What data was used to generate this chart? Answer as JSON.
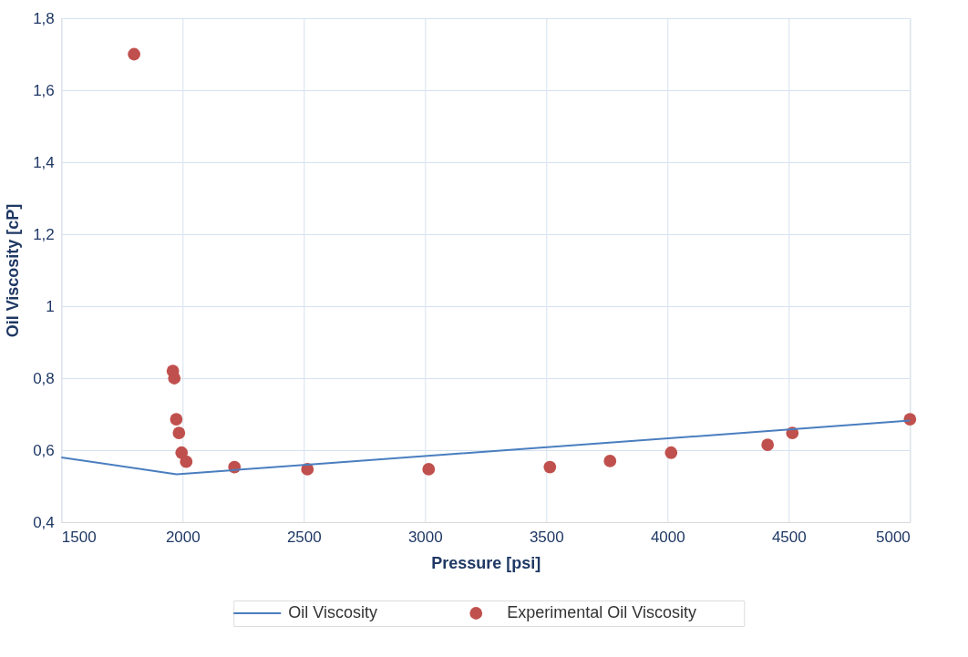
{
  "chart_data": {
    "type": "scatter",
    "xlabel": "Pressure [psi]",
    "ylabel": "Oil Viscosity [cP]",
    "xlim": [
      1500,
      5000
    ],
    "xticks": [
      1500,
      2000,
      2500,
      3000,
      3500,
      4000,
      4500,
      5000
    ],
    "ylim": [
      0.4,
      1.8
    ],
    "yticks": [
      {
        "value": 0.4,
        "label": "0,4"
      },
      {
        "value": 0.6,
        "label": "0,6"
      },
      {
        "value": 0.8,
        "label": "0,8"
      },
      {
        "value": 1,
        "label": "1"
      },
      {
        "value": 1.2,
        "label": "1,2"
      },
      {
        "value": 1.4,
        "label": "1,4"
      },
      {
        "value": 1.6,
        "label": "1,6"
      },
      {
        "value": 1.8,
        "label": "1,8"
      }
    ],
    "grid": true,
    "legend": "bottom",
    "series": [
      {
        "name": "Oil Viscosity",
        "type": "line",
        "color": "#4a7ebf",
        "marker": "none",
        "line_style": "solid",
        "x": [
          1500,
          1975,
          5000
        ],
        "values": [
          0.58,
          0.533,
          0.682
        ]
      },
      {
        "name": "Experimental Oil Viscosity",
        "color": "#c0504d",
        "marker": "circle",
        "x": [
          1800,
          1960,
          1966,
          1974,
          1985,
          1996,
          2015,
          2214,
          2515,
          3015,
          3515,
          3763,
          4015,
          4413,
          4515,
          5000
        ],
        "values": [
          1.7,
          0.82,
          0.8,
          0.686,
          0.648,
          0.593,
          0.568,
          0.553,
          0.547,
          0.547,
          0.553,
          0.57,
          0.593,
          0.615,
          0.648,
          0.686
        ]
      }
    ]
  }
}
